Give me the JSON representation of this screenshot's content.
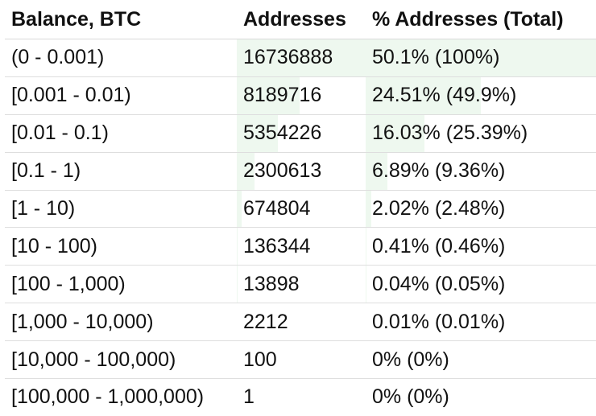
{
  "chart_data": {
    "type": "table",
    "columns": [
      "Balance, BTC",
      "Addresses",
      "% Addresses (Total)"
    ],
    "rows": [
      {
        "balance": "(0 - 0.001)",
        "addresses": "16736888",
        "percent": "50.1% (100%)",
        "addr_share": 1.0,
        "pct_share": 1.0
      },
      {
        "balance": "[0.001 - 0.01)",
        "addresses": "8189716",
        "percent": "24.51% (49.9%)",
        "addr_share": 0.489,
        "pct_share": 0.499
      },
      {
        "balance": "[0.01 - 0.1)",
        "addresses": "5354226",
        "percent": "16.03% (25.39%)",
        "addr_share": 0.32,
        "pct_share": 0.254
      },
      {
        "balance": "[0.1 - 1)",
        "addresses": "2300613",
        "percent": "6.89% (9.36%)",
        "addr_share": 0.137,
        "pct_share": 0.094
      },
      {
        "balance": "[1 - 10)",
        "addresses": "674804",
        "percent": "2.02% (2.48%)",
        "addr_share": 0.04,
        "pct_share": 0.025
      },
      {
        "balance": "[10 - 100)",
        "addresses": "136344",
        "percent": "0.41% (0.46%)",
        "addr_share": 0.008,
        "pct_share": 0.005
      },
      {
        "balance": "[100 - 1,000)",
        "addresses": "13898",
        "percent": "0.04% (0.05%)",
        "addr_share": 0.001,
        "pct_share": 0.0005
      },
      {
        "balance": "[1,000 - 10,000)",
        "addresses": "2212",
        "percent": "0.01% (0.01%)",
        "addr_share": 0.0001,
        "pct_share": 0.0001
      },
      {
        "balance": "[10,000 - 100,000)",
        "addresses": "100",
        "percent": "0% (0%)",
        "addr_share": 0,
        "pct_share": 0
      },
      {
        "balance": "[100,000 - 1,000,000)",
        "addresses": "1",
        "percent": "0% (0%)",
        "addr_share": 0,
        "pct_share": 0
      }
    ],
    "bar_color": "#eef8ef"
  }
}
